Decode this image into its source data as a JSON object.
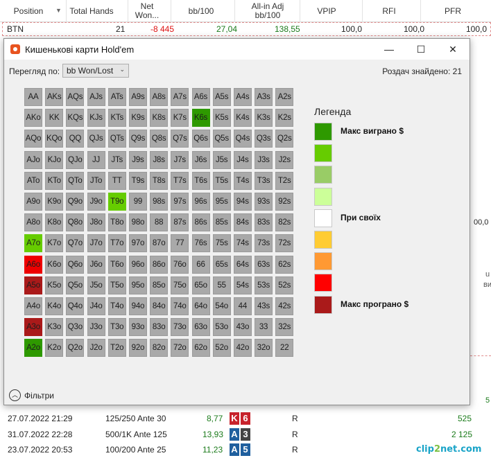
{
  "background": {
    "columns": [
      "Position",
      "Total Hands",
      "Net Won...",
      "bb/100",
      "All-in Adj bb/100",
      "VPIP",
      "RFI",
      "PFR"
    ],
    "row": {
      "position": "BTN",
      "total_hands": "21",
      "net_won": "-8 445",
      "bb100": "27,04",
      "allin_bb100": "138,55",
      "vpip": "100,0",
      "rfi": "100,0",
      "pfr": "100,0"
    },
    "hand_rows": [
      {
        "date": "27.07.2022 21:29",
        "stakes": "125/250 Ante 30",
        "value": "8,77",
        "card1": "K",
        "card2": "6",
        "action": "R",
        "amount": "525"
      },
      {
        "date": "31.07.2022 22:28",
        "stakes": "500/1K Ante 125",
        "value": "13,93",
        "card1": "A",
        "card2": "3",
        "action": "R",
        "amount": "2 125"
      },
      {
        "date": "23.07.2022 20:53",
        "stakes": "100/200 Ante 25",
        "value": "11,23",
        "card1": "A",
        "card2": "5",
        "action": "R",
        "amount": ""
      }
    ],
    "edge_fragments": {
      "right_value": "00,0",
      "right_u": "u",
      "right_vi": "ви",
      "right_5": "5"
    },
    "watermark": {
      "part1": "clip",
      "part2": "2",
      "part3": "net.com"
    }
  },
  "dialog": {
    "title": "Кишенькові карти Hold'em",
    "buttons": {
      "minimize": "—",
      "maximize": "☐",
      "close": "✕"
    },
    "view_label": "Перегляд по:",
    "view_value": "bb Won/Lost",
    "found_text": "Роздач знайдено: 21",
    "filters_label": "Фільтри",
    "colors": {
      "neutral": "#a9a9a9",
      "best": "#2e9900",
      "good": "#66cc00",
      "bad": "#ee0000",
      "worst": "#aa1a1a"
    },
    "grid": [
      [
        "AA",
        "AKs",
        "AQs",
        "AJs",
        "ATs",
        "A9s",
        "A8s",
        "A7s",
        "A6s",
        "A5s",
        "A4s",
        "A3s",
        "A2s"
      ],
      [
        "AKo",
        "KK",
        "KQs",
        "KJs",
        "KTs",
        "K9s",
        "K8s",
        "K7s",
        "K6s",
        "K5s",
        "K4s",
        "K3s",
        "K2s"
      ],
      [
        "AQo",
        "KQo",
        "QQ",
        "QJs",
        "QTs",
        "Q9s",
        "Q8s",
        "Q7s",
        "Q6s",
        "Q5s",
        "Q4s",
        "Q3s",
        "Q2s"
      ],
      [
        "AJo",
        "KJo",
        "QJo",
        "JJ",
        "JTs",
        "J9s",
        "J8s",
        "J7s",
        "J6s",
        "J5s",
        "J4s",
        "J3s",
        "J2s"
      ],
      [
        "ATo",
        "KTo",
        "QTo",
        "JTo",
        "TT",
        "T9s",
        "T8s",
        "T7s",
        "T6s",
        "T5s",
        "T4s",
        "T3s",
        "T2s"
      ],
      [
        "A9o",
        "K9o",
        "Q9o",
        "J9o",
        "T9o",
        "99",
        "98s",
        "97s",
        "96s",
        "95s",
        "94s",
        "93s",
        "92s"
      ],
      [
        "A8o",
        "K8o",
        "Q8o",
        "J8o",
        "T8o",
        "98o",
        "88",
        "87s",
        "86s",
        "85s",
        "84s",
        "83s",
        "82s"
      ],
      [
        "A7o",
        "K7o",
        "Q7o",
        "J7o",
        "T7o",
        "97o",
        "87o",
        "77",
        "76s",
        "75s",
        "74s",
        "73s",
        "72s"
      ],
      [
        "A6o",
        "K6o",
        "Q6o",
        "J6o",
        "T6o",
        "96o",
        "86o",
        "76o",
        "66",
        "65s",
        "64s",
        "63s",
        "62s"
      ],
      [
        "A5o",
        "K5o",
        "Q5o",
        "J5o",
        "T5o",
        "95o",
        "85o",
        "75o",
        "65o",
        "55",
        "54s",
        "53s",
        "52s"
      ],
      [
        "A4o",
        "K4o",
        "Q4o",
        "J4o",
        "T4o",
        "94o",
        "84o",
        "74o",
        "64o",
        "54o",
        "44",
        "43s",
        "42s"
      ],
      [
        "A3o",
        "K3o",
        "Q3o",
        "J3o",
        "T3o",
        "93o",
        "83o",
        "73o",
        "63o",
        "53o",
        "43o",
        "33",
        "32s"
      ],
      [
        "A2o",
        "K2o",
        "Q2o",
        "J2o",
        "T2o",
        "92o",
        "82o",
        "72o",
        "62o",
        "52o",
        "42o",
        "32o",
        "22"
      ]
    ],
    "highlighted": {
      "K6s": "best",
      "T9o": "good",
      "A7o": "good",
      "A6o": "bad",
      "A5o": "worst",
      "A3o": "worst",
      "A2o": "best"
    },
    "legend": {
      "title": "Легенда",
      "items": [
        {
          "color": "#2e9900",
          "label": "Макс виграно $"
        },
        {
          "color": "#66cc00",
          "label": ""
        },
        {
          "color": "#99cc66",
          "label": ""
        },
        {
          "color": "#ccff99",
          "label": ""
        },
        {
          "color": "#ffffff",
          "label": "При своїх"
        },
        {
          "color": "#ffcc33",
          "label": ""
        },
        {
          "color": "#ff9933",
          "label": ""
        },
        {
          "color": "#ff0000",
          "label": ""
        },
        {
          "color": "#aa1a1a",
          "label": "Макс програно $"
        }
      ]
    }
  }
}
